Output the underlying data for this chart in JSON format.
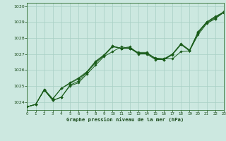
{
  "title": "Graphe pression niveau de la mer (hPa)",
  "bg_color": "#cce8e0",
  "plot_bg_color": "#cce8e0",
  "line_color": "#1a5c1a",
  "grid_color": "#a8cfc4",
  "label_color": "#1a4a1a",
  "xlim": [
    0,
    23
  ],
  "ylim": [
    1023.5,
    1030.2
  ],
  "yticks": [
    1024,
    1025,
    1026,
    1027,
    1028,
    1029,
    1030
  ],
  "xticks": [
    0,
    1,
    2,
    3,
    4,
    5,
    6,
    7,
    8,
    9,
    10,
    11,
    12,
    13,
    14,
    15,
    16,
    17,
    18,
    19,
    20,
    21,
    22,
    23
  ],
  "series": [
    [
      1023.7,
      1023.85,
      1024.75,
      1024.1,
      1024.3,
      1025.0,
      1025.2,
      1025.75,
      1026.3,
      1026.85,
      1027.15,
      1027.45,
      1027.35,
      1027.1,
      1027.1,
      1026.7,
      1026.65,
      1027.0,
      1027.6,
      1027.2,
      1028.4,
      1029.0,
      1029.35,
      1029.6
    ],
    [
      1023.7,
      1023.85,
      1024.75,
      1024.1,
      1024.3,
      1025.05,
      1025.3,
      1025.85,
      1026.45,
      1026.9,
      1027.5,
      1027.35,
      1027.35,
      1027.05,
      1027.05,
      1026.75,
      1026.7,
      1026.7,
      1027.15,
      1027.2,
      1028.2,
      1028.9,
      1029.2,
      1029.6
    ],
    [
      1023.7,
      1023.85,
      1024.8,
      1024.2,
      1024.85,
      1025.2,
      1025.5,
      1025.9,
      1026.55,
      1026.95,
      1027.5,
      1027.35,
      1027.45,
      1027.05,
      1027.05,
      1026.7,
      1026.7,
      1027.0,
      1027.65,
      1027.25,
      1028.35,
      1029.0,
      1029.3,
      1029.65
    ],
    [
      1023.7,
      1023.85,
      1024.75,
      1024.2,
      1024.85,
      1025.15,
      1025.45,
      1025.85,
      1026.5,
      1026.9,
      1027.45,
      1027.35,
      1027.4,
      1027.0,
      1027.0,
      1026.65,
      1026.65,
      1026.95,
      1027.6,
      1027.2,
      1028.3,
      1028.95,
      1029.25,
      1029.6
    ]
  ]
}
